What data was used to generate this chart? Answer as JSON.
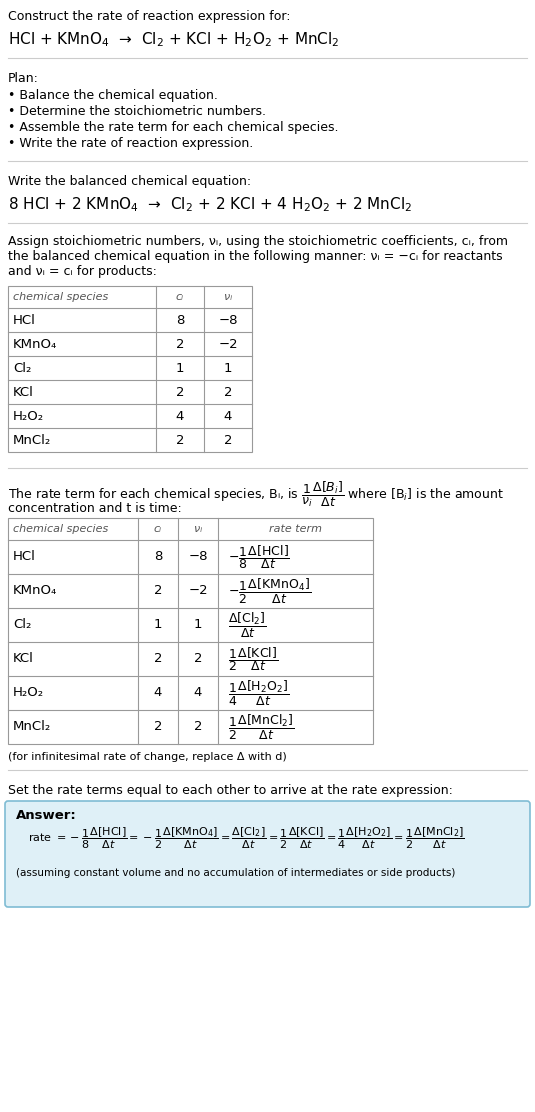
{
  "bg_color": "#ffffff",
  "title_line1": "Construct the rate of reaction expression for:",
  "reaction_unbalanced_parts": [
    "HCl + KMnO",
    "4",
    " →  Cl",
    "2",
    " + KCl + H",
    "2",
    "O",
    "2",
    " + MnCl",
    "2"
  ],
  "plan_header": "Plan:",
  "plan_items": [
    "• Balance the chemical equation.",
    "• Determine the stoichiometric numbers.",
    "• Assemble the rate term for each chemical species.",
    "• Write the rate of reaction expression."
  ],
  "balanced_header": "Write the balanced chemical equation:",
  "stoich_intro_lines": [
    "Assign stoichiometric numbers, νᵢ, using the stoichiometric coefficients, cᵢ, from",
    "the balanced chemical equation in the following manner: νᵢ = −cᵢ for reactants",
    "and νᵢ = cᵢ for products:"
  ],
  "table1_headers": [
    "chemical species",
    "cᵢ",
    "νᵢ"
  ],
  "table1_rows": [
    [
      "HCl",
      "8",
      "−8"
    ],
    [
      "KMnO₄",
      "2",
      "−2"
    ],
    [
      "Cl₂",
      "1",
      "1"
    ],
    [
      "KCl",
      "2",
      "2"
    ],
    [
      "H₂O₂",
      "4",
      "4"
    ],
    [
      "MnCl₂",
      "2",
      "2"
    ]
  ],
  "rate_intro_line1": "The rate term for each chemical species, Bᵢ, is",
  "rate_intro_line2": "concentration and t is time:",
  "table2_headers": [
    "chemical species",
    "cᵢ",
    "νᵢ",
    "rate term"
  ],
  "table2_species": [
    "HCl",
    "KMnO₄",
    "Cl₂",
    "KCl",
    "H₂O₂",
    "MnCl₂"
  ],
  "table2_ci": [
    "8",
    "2",
    "1",
    "2",
    "4",
    "2"
  ],
  "table2_ni": [
    "−8",
    "−2",
    "1",
    "2",
    "4",
    "2"
  ],
  "infinitesimal_note": "(for infinitesimal rate of change, replace Δ with d)",
  "set_equal_text": "Set the rate terms equal to each other to arrive at the rate expression:",
  "answer_label": "Answer:",
  "answer_box_color": "#dff0f7",
  "answer_box_border": "#7fbcd4",
  "answer_footnote": "(assuming constant volume and no accumulation of intermediates or side products)",
  "line_color": "#cccccc",
  "table_border_color": "#999999",
  "font_size": 9.5,
  "font_size_small": 8.0,
  "font_size_table": 9.5
}
